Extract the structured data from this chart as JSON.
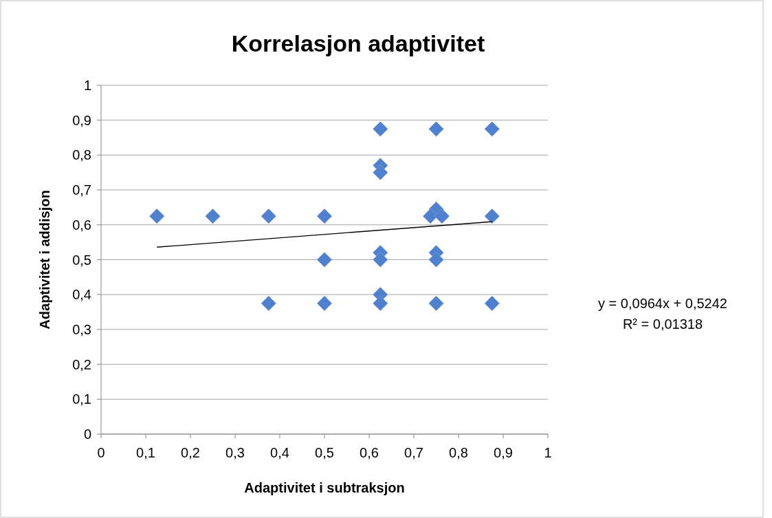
{
  "chart_data": {
    "type": "scatter",
    "title": "Korrelasjon adaptivitet",
    "xlabel": "Adaptivitet i subtraksjon",
    "ylabel": "Adaptivitet i addisjon",
    "series": [
      {
        "color": "#4f81d0",
        "x": [
          0.125,
          0.25,
          0.375,
          0.5,
          0.375,
          0.5,
          0.5,
          0.625,
          0.625,
          0.625,
          0.625,
          0.625,
          0.625,
          0.625,
          0.75,
          0.75,
          0.737,
          0.763,
          0.75,
          0.75,
          0.75,
          0.875,
          0.875,
          0.875
        ],
        "values": [
          0.625,
          0.625,
          0.625,
          0.625,
          0.375,
          0.375,
          0.5,
          0.875,
          0.77,
          0.75,
          0.52,
          0.5,
          0.4,
          0.375,
          0.875,
          0.645,
          0.625,
          0.625,
          0.52,
          0.5,
          0.375,
          0.875,
          0.625,
          0.375
        ]
      },
      {
        "type": "line",
        "color": "#000000",
        "marker": "none",
        "x": [
          0.125,
          0.875
        ],
        "values": [
          0.536,
          0.609
        ]
      }
    ],
    "annotations": [
      "y = 0,0964x + 0,5242",
      "R² = 0,01318"
    ],
    "xlim": [
      0,
      1
    ],
    "ylim": [
      0,
      1
    ],
    "xticks": [
      {
        "value": 0,
        "label": "0"
      },
      {
        "value": 0.1,
        "label": "0,1"
      },
      {
        "value": 0.2,
        "label": "0,2"
      },
      {
        "value": 0.3,
        "label": "0,3"
      },
      {
        "value": 0.4,
        "label": "0,4"
      },
      {
        "value": 0.5,
        "label": "0,5"
      },
      {
        "value": 0.6,
        "label": "0,6"
      },
      {
        "value": 0.7,
        "label": "0,7"
      },
      {
        "value": 0.8,
        "label": "0,8"
      },
      {
        "value": 0.9,
        "label": "0,9"
      },
      {
        "value": 1,
        "label": "1"
      }
    ],
    "yticks": [
      {
        "value": 0,
        "label": "0"
      },
      {
        "value": 0.1,
        "label": "0,1"
      },
      {
        "value": 0.2,
        "label": "0,2"
      },
      {
        "value": 0.3,
        "label": "0,3"
      },
      {
        "value": 0.4,
        "label": "0,4"
      },
      {
        "value": 0.5,
        "label": "0,5"
      },
      {
        "value": 0.6,
        "label": "0,6"
      },
      {
        "value": 0.7,
        "label": "0,7"
      },
      {
        "value": 0.8,
        "label": "0,8"
      },
      {
        "value": 0.9,
        "label": "0,9"
      },
      {
        "value": 1,
        "label": "1"
      }
    ],
    "grid": "y",
    "marker": "diamond"
  }
}
